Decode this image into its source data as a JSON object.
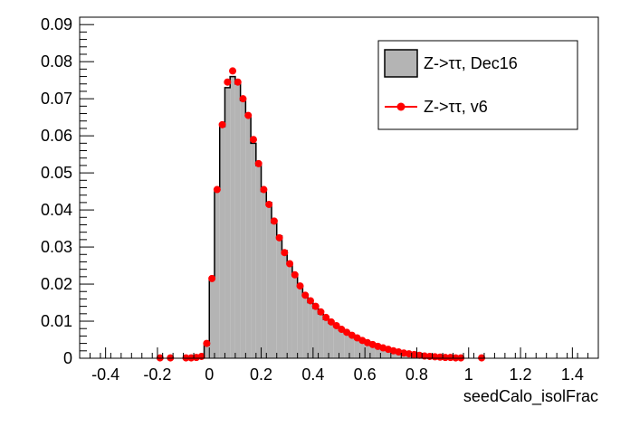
{
  "chart_data": {
    "type": "histogram",
    "title": "",
    "xlabel": "seedCalo_isolFrac",
    "ylabel": "",
    "xlim": [
      -0.5,
      1.5
    ],
    "ylim": [
      0,
      0.092
    ],
    "bin_width": 0.02,
    "grid": false,
    "legend_position": "top-right",
    "x_ticks": [
      -0.4,
      -0.2,
      0,
      0.2,
      0.4,
      0.6,
      0.8,
      1,
      1.2,
      1.4
    ],
    "x_tick_labels": [
      "-0.4",
      "-0.2",
      "0",
      "0.2",
      "0.4",
      "0.6",
      "0.8",
      "1",
      "1.2",
      "1.4"
    ],
    "y_ticks": [
      0,
      0.01,
      0.02,
      0.03,
      0.04,
      0.05,
      0.06,
      0.07,
      0.08,
      0.09
    ],
    "y_tick_labels": [
      "0",
      "0.01",
      "0.02",
      "0.03",
      "0.04",
      "0.05",
      "0.06",
      "0.07",
      "0.08",
      "0.09"
    ],
    "series": [
      {
        "name": "Z->ττ, Dec16",
        "style": "filled-histogram",
        "color": "#b4b4b4",
        "edge_color": "#000000",
        "x": [
          -0.02,
          0.0,
          0.02,
          0.04,
          0.06,
          0.08,
          0.1,
          0.12,
          0.14,
          0.16,
          0.18,
          0.2,
          0.22,
          0.24,
          0.26,
          0.28,
          0.3,
          0.32,
          0.34,
          0.36,
          0.38,
          0.4,
          0.42,
          0.44,
          0.46,
          0.48,
          0.5,
          0.52,
          0.54,
          0.56,
          0.58,
          0.6,
          0.62,
          0.64,
          0.66,
          0.68,
          0.7,
          0.72,
          0.74,
          0.76,
          0.78,
          0.8,
          0.82,
          0.84,
          0.86,
          0.88,
          0.9,
          0.92,
          0.94
        ],
        "values": [
          0.0035,
          0.0215,
          0.0455,
          0.0625,
          0.073,
          0.076,
          0.074,
          0.0695,
          0.0655,
          0.058,
          0.052,
          0.045,
          0.042,
          0.0365,
          0.033,
          0.029,
          0.0255,
          0.0225,
          0.0195,
          0.017,
          0.015,
          0.0135,
          0.012,
          0.0105,
          0.0095,
          0.0085,
          0.0075,
          0.0067,
          0.006,
          0.0053,
          0.0047,
          0.0042,
          0.0037,
          0.0032,
          0.0028,
          0.0024,
          0.002,
          0.0017,
          0.0014,
          0.0011,
          0.0009,
          0.0007,
          0.0005,
          0.0004,
          0.0003,
          0.0002,
          0.0001,
          0.0001,
          0.0001
        ]
      },
      {
        "name": "Z->ττ, v6",
        "style": "markers-line",
        "color": "#ff0000",
        "x": [
          -0.19,
          -0.15,
          -0.09,
          -0.07,
          -0.05,
          -0.03,
          -0.01,
          0.01,
          0.03,
          0.05,
          0.07,
          0.09,
          0.11,
          0.13,
          0.15,
          0.17,
          0.19,
          0.21,
          0.23,
          0.25,
          0.27,
          0.29,
          0.31,
          0.33,
          0.35,
          0.37,
          0.39,
          0.41,
          0.43,
          0.45,
          0.47,
          0.49,
          0.51,
          0.53,
          0.55,
          0.57,
          0.59,
          0.61,
          0.63,
          0.65,
          0.67,
          0.69,
          0.71,
          0.73,
          0.75,
          0.77,
          0.79,
          0.81,
          0.83,
          0.85,
          0.87,
          0.89,
          0.91,
          0.93,
          0.95,
          0.97,
          1.05
        ],
        "values": [
          0.0001,
          0.0001,
          0.0001,
          0.0001,
          0.0002,
          0.0005,
          0.004,
          0.0215,
          0.0455,
          0.063,
          0.0745,
          0.0775,
          0.0745,
          0.07,
          0.0655,
          0.059,
          0.0525,
          0.0455,
          0.0415,
          0.037,
          0.0325,
          0.0285,
          0.0255,
          0.0225,
          0.0195,
          0.017,
          0.0155,
          0.014,
          0.0125,
          0.011,
          0.0098,
          0.0088,
          0.0078,
          0.007,
          0.0062,
          0.0055,
          0.0048,
          0.0042,
          0.0037,
          0.0032,
          0.0028,
          0.0024,
          0.002,
          0.0017,
          0.0014,
          0.0012,
          0.001,
          0.0008,
          0.0006,
          0.0005,
          0.0004,
          0.0003,
          0.0002,
          0.0002,
          0.0001,
          0.0001,
          0.0001
        ]
      }
    ]
  }
}
